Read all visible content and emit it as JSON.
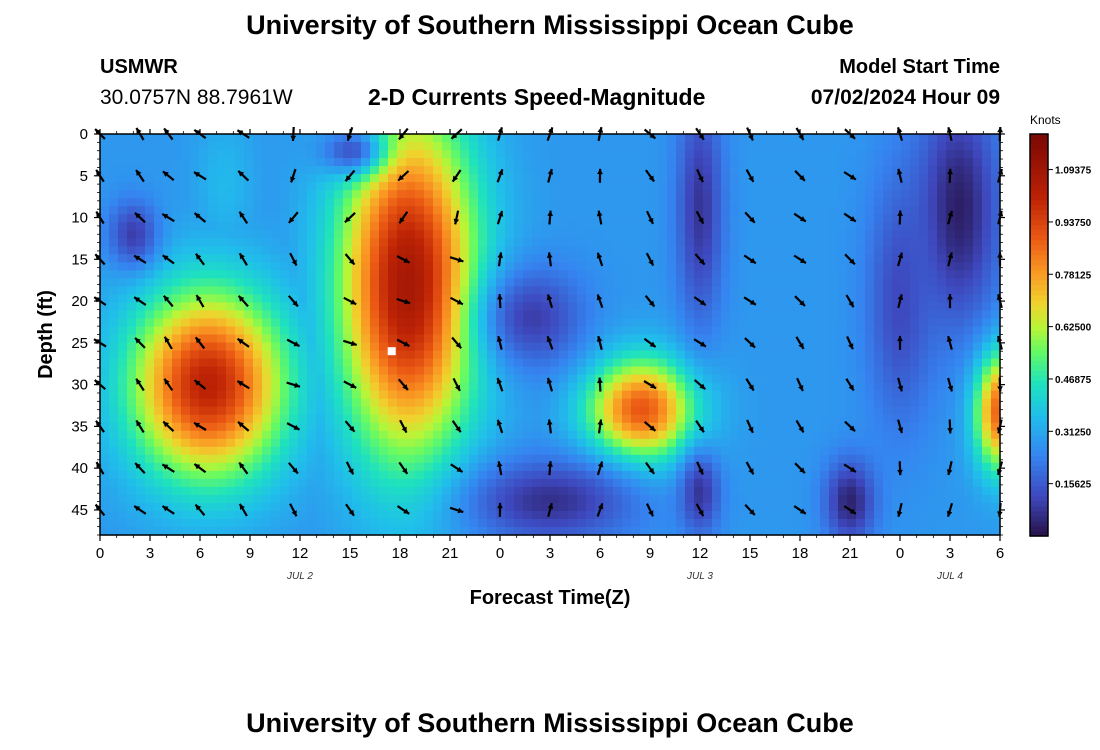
{
  "header": {
    "title": "University of Southern Mississippi Ocean Cube",
    "station_name": "USMWR",
    "coordinates": "30.0757N  88.7961W",
    "subtitle": "2-D Currents Speed-Magnitude",
    "model_start_label": "Model Start Time",
    "model_start_value": "07/02/2024 Hour 09"
  },
  "footer": {
    "title": "University of Southern Mississippi Ocean Cube"
  },
  "chart_data": {
    "type": "heatmap",
    "title": "2-D Currents Speed-Magnitude",
    "xlabel": "Forecast Time(Z)",
    "ylabel": "Depth (ft)",
    "x_tick_labels": [
      "0",
      "3",
      "6",
      "9",
      "12",
      "15",
      "18",
      "21",
      "0",
      "3",
      "6",
      "9",
      "12",
      "15",
      "18",
      "21",
      "0",
      "3",
      "6"
    ],
    "x_range_hours": [
      0,
      54
    ],
    "y_tick_labels": [
      "0",
      "5",
      "10",
      "15",
      "20",
      "25",
      "30",
      "35",
      "40",
      "45"
    ],
    "y_range_ft": [
      0,
      48
    ],
    "date_labels": [
      {
        "label": "JUL 2",
        "hour": 12
      },
      {
        "label": "JUL 3",
        "hour": 36
      },
      {
        "label": "JUL 4",
        "hour": 51
      }
    ],
    "colorbar": {
      "unit": "Knots",
      "range": [
        0,
        1.2
      ],
      "tick_labels": [
        "1.09375",
        "0.93750",
        "0.78125",
        "0.62500",
        "0.46875",
        "0.31250",
        "0.15625"
      ],
      "tick_values": [
        1.09375,
        0.9375,
        0.78125,
        0.625,
        0.46875,
        0.3125,
        0.15625
      ]
    },
    "marker": {
      "hour": 17.5,
      "depth": 26
    },
    "speed_features": [
      {
        "hour": 6.5,
        "depth": 30,
        "rx": 4.5,
        "rd": 11,
        "speed": 1.02
      },
      {
        "hour": 18,
        "depth": 23,
        "rx": 3,
        "rd": 6,
        "speed": 0.95
      },
      {
        "hour": 8,
        "depth": 38,
        "rx": 3,
        "rd": 5,
        "speed": 0.5
      },
      {
        "hour": 7.5,
        "depth": 31,
        "rx": 2.5,
        "rd": 7,
        "speed": 0.55
      },
      {
        "hour": 32.5,
        "depth": 33,
        "rx": 3.2,
        "rd": 6,
        "speed": 0.9
      },
      {
        "hour": 30,
        "depth": 35,
        "rx": 2,
        "rd": 5,
        "speed": 0.45
      },
      {
        "hour": 18.5,
        "depth": 18,
        "rx": 4,
        "rd": 20,
        "speed": 1.08
      },
      {
        "hour": 19,
        "depth": 27,
        "rx": 3,
        "rd": 8,
        "speed": 0.6
      },
      {
        "hour": 54,
        "depth": 33,
        "rx": 1.5,
        "rd": 7,
        "speed": 0.9
      },
      {
        "hour": 7.5,
        "depth": 6,
        "rx": 1.8,
        "rd": 8,
        "speed": 0.35
      },
      {
        "hour": 25,
        "depth": 32,
        "rx": 3,
        "rd": 2.5,
        "speed": 0.25
      },
      {
        "hour": 36.5,
        "depth": 27,
        "rx": 1.5,
        "rd": 5,
        "speed": 0.28
      }
    ],
    "low_features": [
      {
        "hour": 27,
        "depth": 44,
        "rx": 5,
        "rd": 5,
        "level": 0.07
      },
      {
        "hour": 36,
        "depth": 9,
        "rx": 1.4,
        "rd": 14,
        "level": 0.08
      },
      {
        "hour": 36,
        "depth": 43,
        "rx": 1.2,
        "rd": 5,
        "level": 0.08
      },
      {
        "hour": 51.5,
        "depth": 9,
        "rx": 2.5,
        "rd": 14,
        "level": 0.03
      },
      {
        "hour": 45,
        "depth": 44,
        "rx": 1.5,
        "rd": 5,
        "level": 0.04
      },
      {
        "hour": 26,
        "depth": 22,
        "rx": 3,
        "rd": 6,
        "level": 0.1
      },
      {
        "hour": 2,
        "depth": 12,
        "rx": 1.5,
        "rd": 4,
        "level": 0.1
      },
      {
        "hour": 15,
        "depth": 2,
        "rx": 2,
        "rd": 3,
        "level": 0.15
      },
      {
        "hour": 48,
        "depth": 20,
        "rx": 2,
        "rd": 15,
        "level": 0.12
      }
    ],
    "vector_grid": {
      "hours": [
        0,
        2.4,
        4.1,
        6,
        8.6,
        11.6,
        15,
        18.2,
        21.4,
        24,
        27,
        30,
        33,
        36,
        39,
        42,
        45,
        48,
        51,
        54
      ],
      "depths": [
        0,
        5,
        10,
        15,
        20,
        25,
        30,
        35,
        40,
        45
      ]
    }
  }
}
